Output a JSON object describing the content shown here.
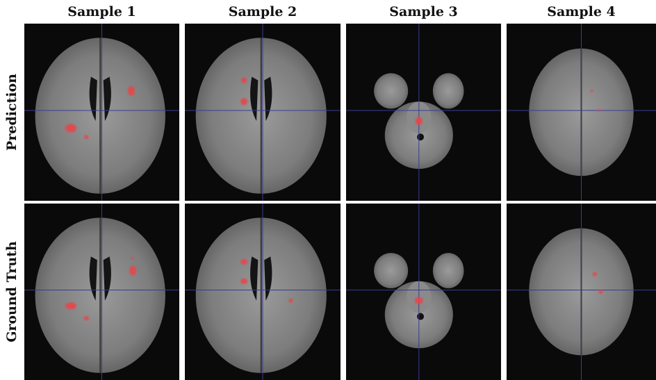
{
  "columns": [
    "Sample 1",
    "Sample 2",
    "Sample 3",
    "Sample 4"
  ],
  "rows": [
    "Prediction",
    "Ground Truth"
  ]
}
